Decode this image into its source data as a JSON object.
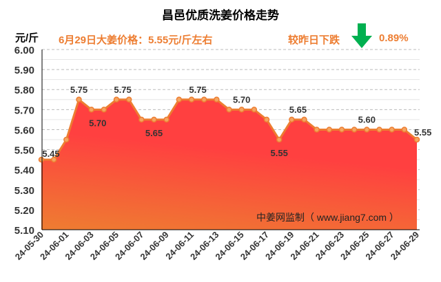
{
  "chart_data": {
    "type": "area",
    "title": "昌邑优质洗姜价格走势",
    "ylabel": "元/斤",
    "ylim": [
      5.1,
      6.0
    ],
    "yticks": [
      "5.10",
      "5.20",
      "5.30",
      "5.40",
      "5.50",
      "5.60",
      "5.70",
      "5.80",
      "5.90",
      "6.00"
    ],
    "x": [
      "24-05-30",
      "24-05-31",
      "24-06-01",
      "24-06-02",
      "24-06-03",
      "24-06-04",
      "24-06-05",
      "24-06-06",
      "24-06-07",
      "24-06-08",
      "24-06-09",
      "24-06-10",
      "24-06-11",
      "24-06-12",
      "24-06-13",
      "24-06-14",
      "24-06-15",
      "24-06-16",
      "24-06-17",
      "24-06-18",
      "24-06-19",
      "24-06-20",
      "24-06-21",
      "24-06-22",
      "24-06-23",
      "24-06-24",
      "24-06-25",
      "24-06-26",
      "24-06-27",
      "24-06-28",
      "24-06-29"
    ],
    "xtick_labels": [
      "24-05-30",
      "24-06-01",
      "24-06-03",
      "24-06-05",
      "24-06-07",
      "24-06-09",
      "24-06-11",
      "24-06-13",
      "24-06-15",
      "24-06-17",
      "24-06-19",
      "24-06-21",
      "24-06-23",
      "24-06-25",
      "24-06-27",
      "24-06-29"
    ],
    "values": [
      5.45,
      5.45,
      5.55,
      5.75,
      5.7,
      5.7,
      5.75,
      5.75,
      5.65,
      5.65,
      5.65,
      5.75,
      5.75,
      5.75,
      5.75,
      5.7,
      5.7,
      5.7,
      5.65,
      5.55,
      5.65,
      5.65,
      5.6,
      5.6,
      5.6,
      5.6,
      5.6,
      5.6,
      5.6,
      5.6,
      5.55
    ],
    "data_labels": [
      {
        "index": 0,
        "text": "5.45",
        "pos": "above"
      },
      {
        "index": 3,
        "text": "5.75",
        "pos": "above"
      },
      {
        "index": 4.5,
        "text": "5.70",
        "pos": "below"
      },
      {
        "index": 6.5,
        "text": "5.75",
        "pos": "above"
      },
      {
        "index": 9,
        "text": "5.65",
        "pos": "below"
      },
      {
        "index": 12.5,
        "text": "5.75",
        "pos": "above"
      },
      {
        "index": 16,
        "text": "5.70",
        "pos": "above"
      },
      {
        "index": 19,
        "text": "5.55",
        "pos": "below"
      },
      {
        "index": 20.5,
        "text": "5.65",
        "pos": "above"
      },
      {
        "index": 26,
        "text": "5.60",
        "pos": "above"
      },
      {
        "index": 30,
        "text": "5.55",
        "pos": "right"
      }
    ],
    "grid": true,
    "colors": {
      "line": "#ed7d31",
      "fill_top": "#ff4040",
      "fill_bottom": "#ee7d31"
    }
  },
  "header": {
    "info": "6月29日大姜价格：5.55元/斤左右",
    "compare": "较昨日下跌",
    "change_pct": "0.89%",
    "arrow_icon": "down-arrow",
    "arrow_color": "#00b050"
  },
  "source": "中姜网监制（ www.jiang7.com ）"
}
